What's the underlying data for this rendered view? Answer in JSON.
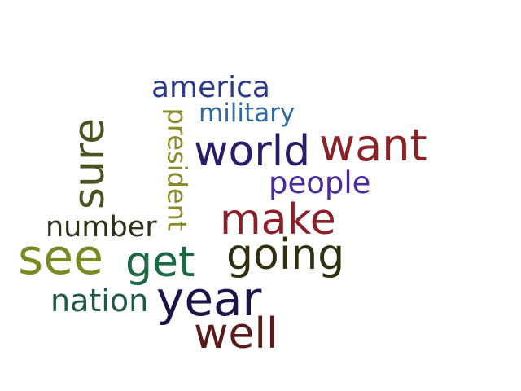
{
  "word_cloud": {
    "words": [
      {
        "text": "america",
        "color": "#2b3a8c"
      },
      {
        "text": "military",
        "color": "#2f6aa3"
      },
      {
        "text": "president",
        "color": "#8a8a2a"
      },
      {
        "text": "sure",
        "color": "#4a5220"
      },
      {
        "text": "world",
        "color": "#2a1a6a"
      },
      {
        "text": "want",
        "color": "#8a2228"
      },
      {
        "text": "people",
        "color": "#4b2a9a"
      },
      {
        "text": "number",
        "color": "#2a3318"
      },
      {
        "text": "make",
        "color": "#8a1f2a"
      },
      {
        "text": "see",
        "color": "#7a8a22"
      },
      {
        "text": "get",
        "color": "#1a6a44"
      },
      {
        "text": "going",
        "color": "#2f3010"
      },
      {
        "text": "nation",
        "color": "#1f5a44"
      },
      {
        "text": "year",
        "color": "#1a1448"
      },
      {
        "text": "well",
        "color": "#5a1a1a"
      }
    ]
  }
}
